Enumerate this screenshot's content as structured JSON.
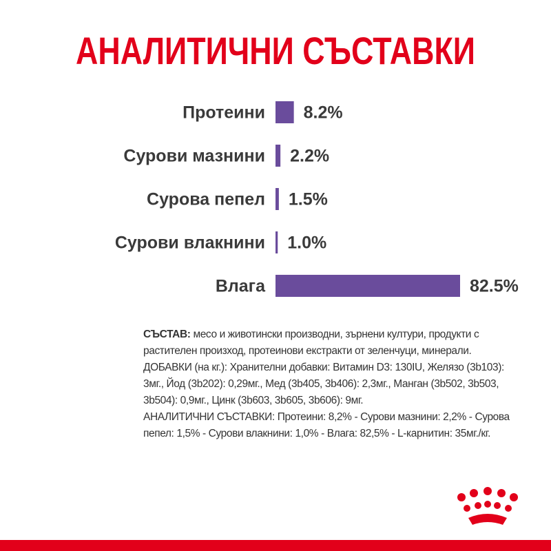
{
  "chart_data": {
    "type": "bar",
    "orientation": "horizontal",
    "title": "АНАЛИТИЧНИ СЪСТАВКИ",
    "categories": [
      "Протеини",
      "Сурови мазнини",
      "Сурова пепел",
      "Сурови влакнини",
      "Влага"
    ],
    "values": [
      8.2,
      2.2,
      1.5,
      1.0,
      82.5
    ],
    "value_labels": [
      "8.2%",
      "2.2%",
      "1.5%",
      "1.0%",
      "82.5%"
    ],
    "color": "#6a4c9c"
  },
  "composition": {
    "label": "СЪСТАВ:",
    "text": "месо и животински производни, зърнени култури, продукти с растителен произход, протеинови екстракти от зеленчуци, минерали."
  },
  "additives": "ДОБАВКИ (на кг.): Хранителни добавки: Витамин D3: 130IU, Желязо (3b103): 3мг., Йод (3b202): 0,29мг., Мед (3b405, 3b406): 2,3мг., Манган (3b502, 3b503, 3b504): 0,9мг., Цинк (3b603, 3b605, 3b606): 9мг.",
  "analytical": "АНАЛИТИЧНИ СЪСТАВКИ: Протеини: 8,2% - Сурови мазнини: 2,2% - Сурова пепел: 1,5% - Сурови влакнини: 1,0% - Влага: 82,5% - L-карнитин: 35мг./кг."
}
